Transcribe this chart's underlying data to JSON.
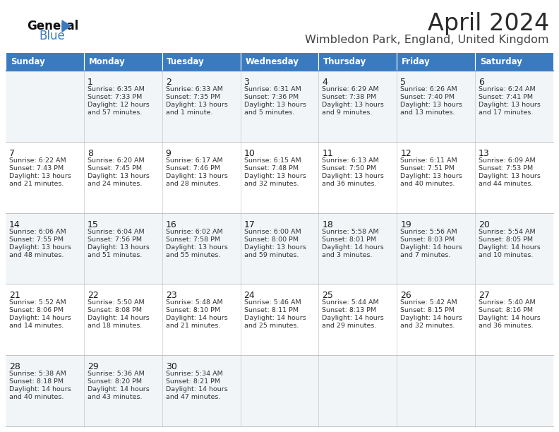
{
  "title": "April 2024",
  "subtitle": "Wimbledon Park, England, United Kingdom",
  "header_color": "#3a7bbf",
  "header_text_color": "#ffffff",
  "days_of_week": [
    "Sunday",
    "Monday",
    "Tuesday",
    "Wednesday",
    "Thursday",
    "Friday",
    "Saturday"
  ],
  "calendar_data": [
    [
      {
        "day": null,
        "sunrise": null,
        "sunset": null,
        "daylight": null
      },
      {
        "day": 1,
        "sunrise": "6:35 AM",
        "sunset": "7:33 PM",
        "daylight": "12 hours and 57 minutes"
      },
      {
        "day": 2,
        "sunrise": "6:33 AM",
        "sunset": "7:35 PM",
        "daylight": "13 hours and 1 minute"
      },
      {
        "day": 3,
        "sunrise": "6:31 AM",
        "sunset": "7:36 PM",
        "daylight": "13 hours and 5 minutes"
      },
      {
        "day": 4,
        "sunrise": "6:29 AM",
        "sunset": "7:38 PM",
        "daylight": "13 hours and 9 minutes"
      },
      {
        "day": 5,
        "sunrise": "6:26 AM",
        "sunset": "7:40 PM",
        "daylight": "13 hours and 13 minutes"
      },
      {
        "day": 6,
        "sunrise": "6:24 AM",
        "sunset": "7:41 PM",
        "daylight": "13 hours and 17 minutes"
      }
    ],
    [
      {
        "day": 7,
        "sunrise": "6:22 AM",
        "sunset": "7:43 PM",
        "daylight": "13 hours and 21 minutes"
      },
      {
        "day": 8,
        "sunrise": "6:20 AM",
        "sunset": "7:45 PM",
        "daylight": "13 hours and 24 minutes"
      },
      {
        "day": 9,
        "sunrise": "6:17 AM",
        "sunset": "7:46 PM",
        "daylight": "13 hours and 28 minutes"
      },
      {
        "day": 10,
        "sunrise": "6:15 AM",
        "sunset": "7:48 PM",
        "daylight": "13 hours and 32 minutes"
      },
      {
        "day": 11,
        "sunrise": "6:13 AM",
        "sunset": "7:50 PM",
        "daylight": "13 hours and 36 minutes"
      },
      {
        "day": 12,
        "sunrise": "6:11 AM",
        "sunset": "7:51 PM",
        "daylight": "13 hours and 40 minutes"
      },
      {
        "day": 13,
        "sunrise": "6:09 AM",
        "sunset": "7:53 PM",
        "daylight": "13 hours and 44 minutes"
      }
    ],
    [
      {
        "day": 14,
        "sunrise": "6:06 AM",
        "sunset": "7:55 PM",
        "daylight": "13 hours and 48 minutes"
      },
      {
        "day": 15,
        "sunrise": "6:04 AM",
        "sunset": "7:56 PM",
        "daylight": "13 hours and 51 minutes"
      },
      {
        "day": 16,
        "sunrise": "6:02 AM",
        "sunset": "7:58 PM",
        "daylight": "13 hours and 55 minutes"
      },
      {
        "day": 17,
        "sunrise": "6:00 AM",
        "sunset": "8:00 PM",
        "daylight": "13 hours and 59 minutes"
      },
      {
        "day": 18,
        "sunrise": "5:58 AM",
        "sunset": "8:01 PM",
        "daylight": "14 hours and 3 minutes"
      },
      {
        "day": 19,
        "sunrise": "5:56 AM",
        "sunset": "8:03 PM",
        "daylight": "14 hours and 7 minutes"
      },
      {
        "day": 20,
        "sunrise": "5:54 AM",
        "sunset": "8:05 PM",
        "daylight": "14 hours and 10 minutes"
      }
    ],
    [
      {
        "day": 21,
        "sunrise": "5:52 AM",
        "sunset": "8:06 PM",
        "daylight": "14 hours and 14 minutes"
      },
      {
        "day": 22,
        "sunrise": "5:50 AM",
        "sunset": "8:08 PM",
        "daylight": "14 hours and 18 minutes"
      },
      {
        "day": 23,
        "sunrise": "5:48 AM",
        "sunset": "8:10 PM",
        "daylight": "14 hours and 21 minutes"
      },
      {
        "day": 24,
        "sunrise": "5:46 AM",
        "sunset": "8:11 PM",
        "daylight": "14 hours and 25 minutes"
      },
      {
        "day": 25,
        "sunrise": "5:44 AM",
        "sunset": "8:13 PM",
        "daylight": "14 hours and 29 minutes"
      },
      {
        "day": 26,
        "sunrise": "5:42 AM",
        "sunset": "8:15 PM",
        "daylight": "14 hours and 32 minutes"
      },
      {
        "day": 27,
        "sunrise": "5:40 AM",
        "sunset": "8:16 PM",
        "daylight": "14 hours and 36 minutes"
      }
    ],
    [
      {
        "day": 28,
        "sunrise": "5:38 AM",
        "sunset": "8:18 PM",
        "daylight": "14 hours and 40 minutes"
      },
      {
        "day": 29,
        "sunrise": "5:36 AM",
        "sunset": "8:20 PM",
        "daylight": "14 hours and 43 minutes"
      },
      {
        "day": 30,
        "sunrise": "5:34 AM",
        "sunset": "8:21 PM",
        "daylight": "14 hours and 47 minutes"
      },
      {
        "day": null,
        "sunrise": null,
        "sunset": null,
        "daylight": null
      },
      {
        "day": null,
        "sunrise": null,
        "sunset": null,
        "daylight": null
      },
      {
        "day": null,
        "sunrise": null,
        "sunset": null,
        "daylight": null
      },
      {
        "day": null,
        "sunrise": null,
        "sunset": null,
        "daylight": null
      }
    ]
  ],
  "logo_text1": "General",
  "logo_text2": "Blue",
  "bg_color": "#ffffff",
  "alt_row_color": "#f2f5f8",
  "divider_color": "#3a7bbf",
  "border_color": "#bbbbbb",
  "text_color": "#333333",
  "day_num_color": "#1a1a1a",
  "title_color": "#2a2a2a",
  "subtitle_color": "#444444",
  "fig_width": 7.92,
  "fig_height": 6.12,
  "dpi": 100
}
